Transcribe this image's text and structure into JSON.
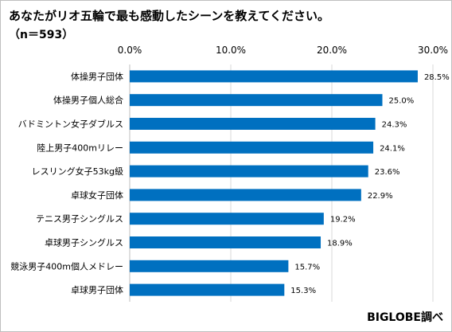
{
  "title": "あなたがリオ五輪で最も感動したシーンを教えてください。",
  "subtitle": "（n＝593）",
  "source": "BIGLOBE調べ",
  "bar_color": "#0070c0",
  "chart_data": {
    "type": "bar",
    "orientation": "horizontal",
    "categories": [
      "体操男子団体",
      "体操男子個人総合",
      "バドミントン女子ダブルス",
      "陸上男子400mリレー",
      "レスリング女子53kg級",
      "卓球女子団体",
      "テニス男子シングルス",
      "卓球男子シングルス",
      "競泳男子400m個人メドレー",
      "卓球男子団体"
    ],
    "values": [
      28.5,
      25.0,
      24.3,
      24.1,
      23.6,
      22.9,
      19.2,
      18.9,
      15.7,
      15.3
    ],
    "value_labels": [
      "28.5%",
      "25.0%",
      "24.3%",
      "24.1%",
      "23.6%",
      "22.9%",
      "19.2%",
      "18.9%",
      "15.7%",
      "15.3%"
    ],
    "xlim": [
      0,
      30
    ],
    "ticks": [
      0,
      10,
      20,
      30
    ],
    "tick_labels": [
      "0.0%",
      "10.0%",
      "20.0%",
      "30.0%"
    ],
    "grid": true
  }
}
